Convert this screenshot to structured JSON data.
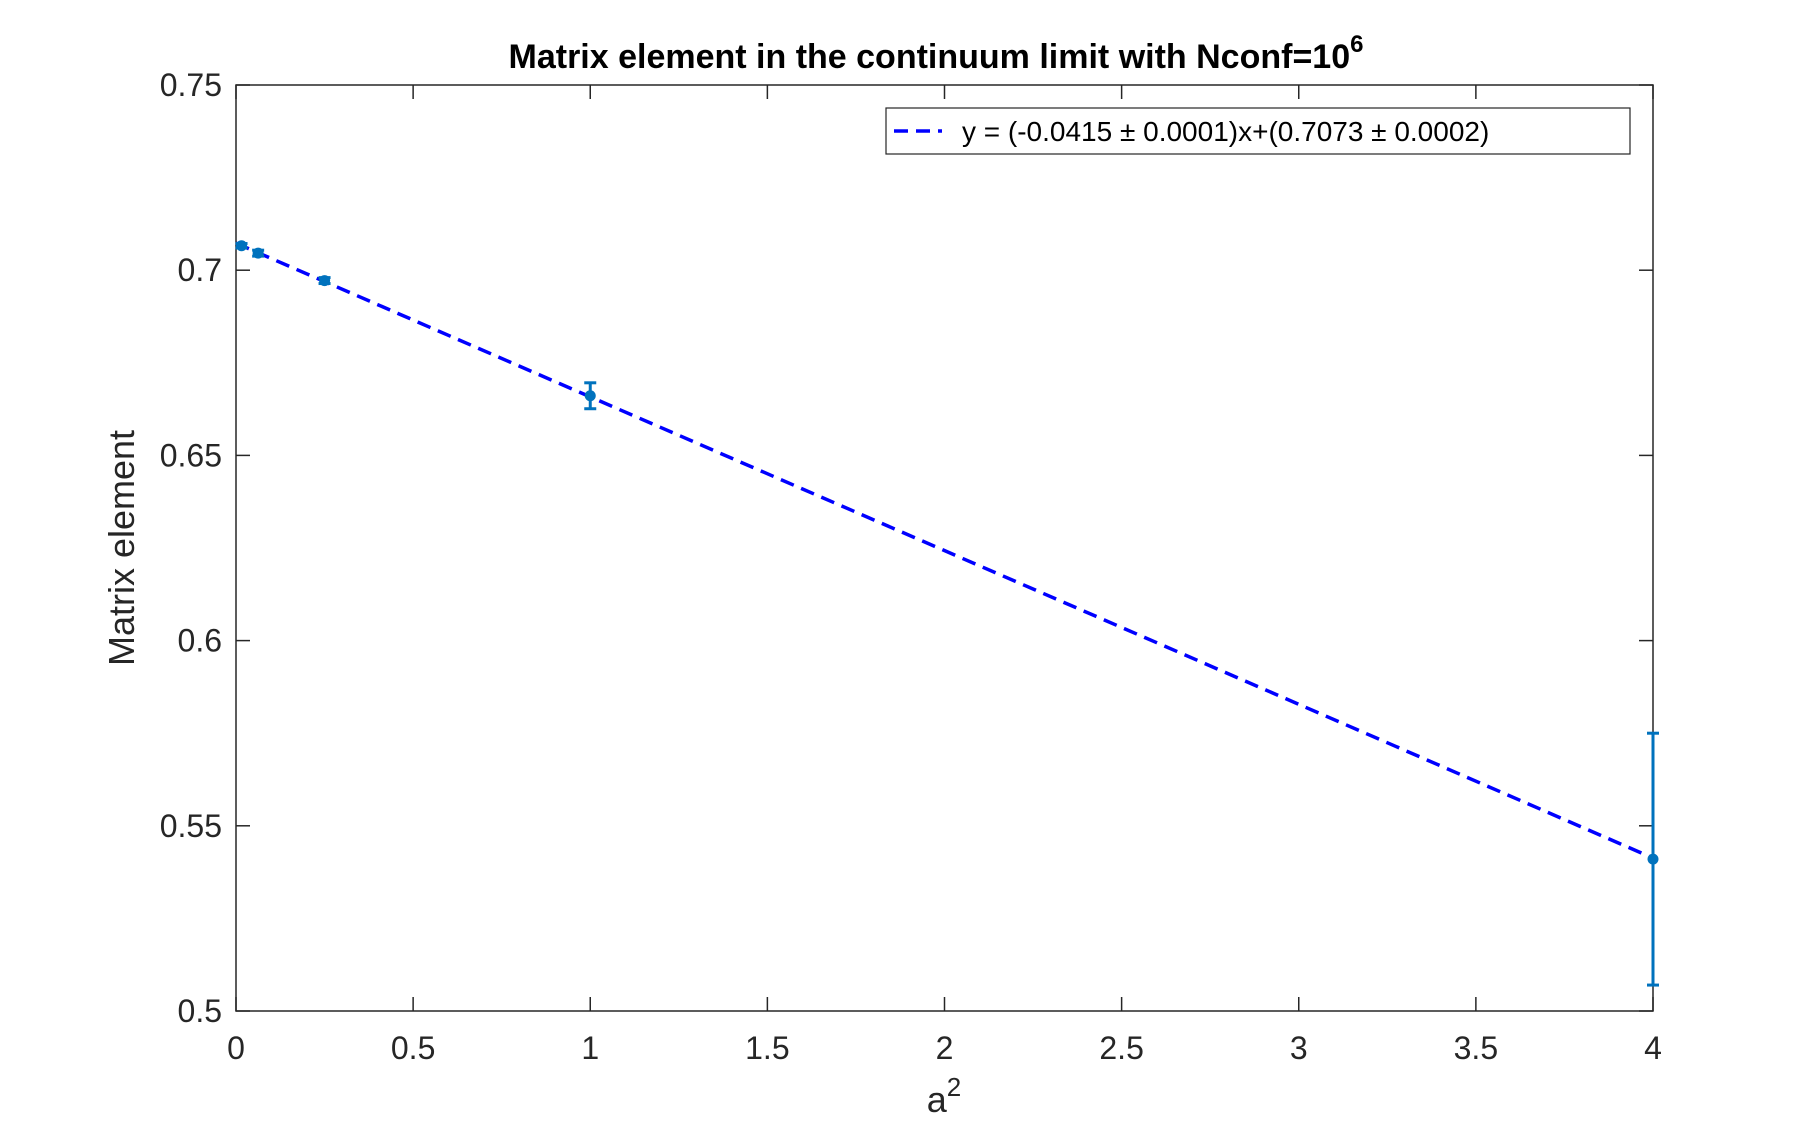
{
  "chart_data": {
    "type": "scatter",
    "title": "Matrix element in the continuum limit with Nconf=10",
    "title_superscript": "6",
    "xlabel": "a",
    "xlabel_superscript": "2",
    "ylabel": "Matrix element",
    "xlim": [
      0,
      4
    ],
    "ylim": [
      0.5,
      0.75
    ],
    "x_ticks": [
      0,
      0.5,
      1,
      1.5,
      2,
      2.5,
      3,
      3.5,
      4
    ],
    "x_tick_labels": [
      "0",
      "0.5",
      "1",
      "1.5",
      "2",
      "2.5",
      "3",
      "3.5",
      "4"
    ],
    "y_ticks": [
      0.5,
      0.55,
      0.6,
      0.65,
      0.7,
      0.75
    ],
    "y_tick_labels": [
      "0.5",
      "0.55",
      "0.6",
      "0.65",
      "0.7",
      "0.75"
    ],
    "grid": false,
    "legend_position": "top-right",
    "series": [
      {
        "type": "errorbar",
        "color": "#0072BD",
        "points": [
          {
            "x": 0.0156,
            "y": 0.7066,
            "err": 0.0006
          },
          {
            "x": 0.0625,
            "y": 0.7046,
            "err": 0.0008
          },
          {
            "x": 0.25,
            "y": 0.6972,
            "err": 0.0008
          },
          {
            "x": 1.0,
            "y": 0.6661,
            "err": 0.0035
          },
          {
            "x": 4.0,
            "y": 0.541,
            "err": 0.034
          }
        ]
      },
      {
        "type": "line",
        "name": "y = (-0.0415 ± 0.0001)x+(0.7073 ± 0.0002)",
        "color": "#0000FF",
        "dashed": true,
        "slope": -0.0415,
        "intercept": 0.7073,
        "x_range": [
          0,
          4
        ]
      }
    ]
  },
  "colors": {
    "axis": "#262626",
    "marker": "#0072BD",
    "fit_line": "#0000FF"
  }
}
